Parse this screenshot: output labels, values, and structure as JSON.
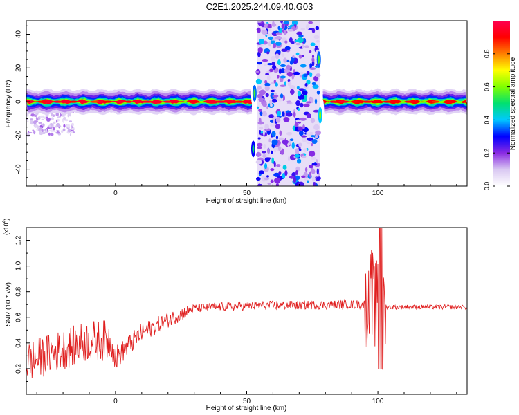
{
  "title": "C2E1.2025.244.09.40.G03",
  "chart_data": [
    {
      "type": "heatmap",
      "xlabel": "Height of straight line (km)",
      "ylabel": "Frequency (Hz)",
      "xlim": [
        -34,
        134
      ],
      "ylim": [
        -50,
        48
      ],
      "x_ticks": [
        0,
        50,
        100
      ],
      "y_ticks": [
        -40,
        -20,
        0,
        20,
        40
      ],
      "colorbar": {
        "label": "Normalized spectral amplitude",
        "range": [
          0.0,
          1.0
        ],
        "ticks": [
          "0.0",
          "0.2",
          "0.4",
          "0.6",
          "0.8"
        ],
        "colors": [
          "#ffffff",
          "#d9c8f2",
          "#8a2be2",
          "#0000ff",
          "#00c8ff",
          "#00e070",
          "#80ff00",
          "#ffff00",
          "#ff8000",
          "#ff0000",
          "#ff0050"
        ]
      },
      "features": [
        {
          "name": "flat tone band",
          "x": [
            -34,
            52
          ],
          "freq": 0,
          "peak": 0.95
        },
        {
          "name": "wideband burst",
          "x": [
            53,
            78
          ],
          "freq_range": [
            -50,
            48
          ],
          "peak": 0.35
        },
        {
          "name": "flat tone band",
          "x": [
            79,
            134
          ],
          "freq": 0,
          "peak": 0.9
        }
      ]
    },
    {
      "type": "line",
      "xlabel": "Height of straight line (km)",
      "ylabel": "SNR (10 * v/v)",
      "y_multiplier": "(x10^4)",
      "xlim": [
        -34,
        134
      ],
      "ylim": [
        0.0,
        1.3
      ],
      "x_ticks": [
        0,
        50,
        100
      ],
      "y_ticks": [
        "0.2",
        "0.4",
        "0.6",
        "0.8",
        "1.0",
        "1.2"
      ],
      "line_color": "#e02020",
      "trend": [
        {
          "x": -34,
          "y": 0.25
        },
        {
          "x": -20,
          "y": 0.35
        },
        {
          "x": -10,
          "y": 0.42
        },
        {
          "x": -2,
          "y": 0.42
        },
        {
          "x": 0,
          "y": 0.28
        },
        {
          "x": 10,
          "y": 0.48
        },
        {
          "x": 20,
          "y": 0.58
        },
        {
          "x": 30,
          "y": 0.67
        },
        {
          "x": 50,
          "y": 0.69
        },
        {
          "x": 90,
          "y": 0.7
        },
        {
          "x": 96,
          "y": 0.7
        },
        {
          "x": 101,
          "y": 0.7
        },
        {
          "x": 104,
          "y": 0.68
        },
        {
          "x": 134,
          "y": 0.68
        }
      ]
    }
  ]
}
